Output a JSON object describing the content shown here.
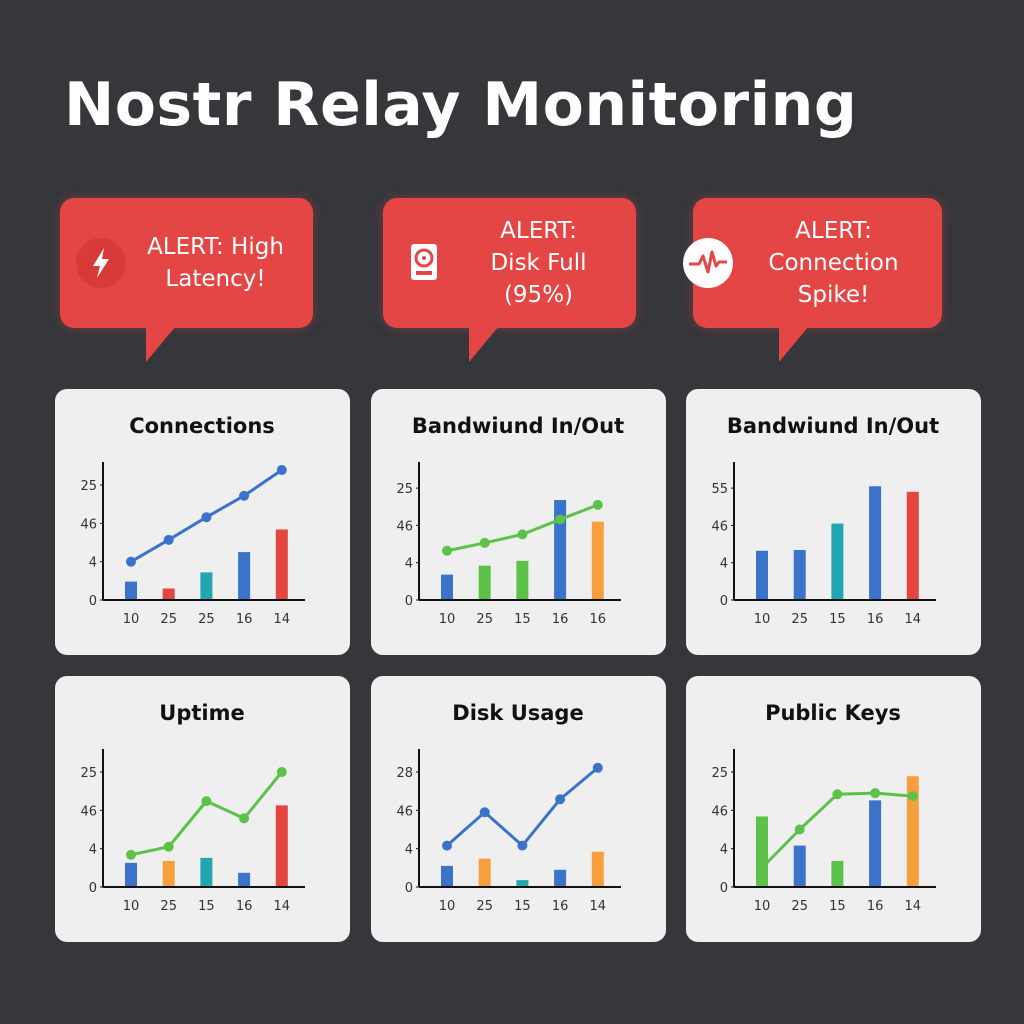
{
  "title": "Nostr Relay Monitoring",
  "alerts": [
    {
      "lines": [
        "ALERT: High",
        "Latency!"
      ]
    },
    {
      "lines": [
        "ALERT:",
        "Disk Full",
        "(95%)"
      ]
    },
    {
      "lines": [
        "ALERT:",
        "Connection",
        "Spike!"
      ]
    }
  ],
  "chart_data": [
    {
      "type": "bar",
      "title": "Connections",
      "categories": [
        "10",
        "25",
        "25",
        "16",
        "14"
      ],
      "ylim": [
        0,
        3.6
      ],
      "yticks": [
        0,
        {
          "value": 1,
          "label": "4"
        },
        {
          "value": 2,
          "label": "46"
        },
        {
          "value": 3,
          "label": "25"
        }
      ],
      "values": [
        0.48,
        0.3,
        0.72,
        1.25,
        1.84
      ],
      "colors": [
        "#3a73c9",
        "#e5453f",
        "#22a6b2",
        "#3a73c9",
        "#e5453f"
      ],
      "line": {
        "values": [
          1.0,
          1.57,
          2.16,
          2.72,
          3.39
        ],
        "color": "#3a73c9"
      }
    },
    {
      "type": "bar",
      "title": "Bandwiund In/Out",
      "categories": [
        "10",
        "25",
        "15",
        "16",
        "16"
      ],
      "ylim": [
        0,
        3.7
      ],
      "yticks": [
        0,
        {
          "value": 1,
          "label": "4"
        },
        {
          "value": 2,
          "label": "46"
        },
        {
          "value": 3,
          "label": "25"
        }
      ],
      "values": [
        0.68,
        0.92,
        1.05,
        2.68,
        2.1
      ],
      "colors": [
        "#3a73c9",
        "#5cc24a",
        "#5cc24a",
        "#3a73c9",
        "#f5a03c"
      ],
      "line": {
        "values": [
          1.32,
          1.53,
          1.76,
          2.16,
          2.55
        ],
        "color": "#5cc24a"
      }
    },
    {
      "type": "bar",
      "title": "Bandwiund In/Out",
      "categories": [
        "10",
        "25",
        "15",
        "16",
        "14"
      ],
      "ylim": [
        0,
        3.7
      ],
      "yticks": [
        0,
        {
          "value": 1,
          "label": "4"
        },
        {
          "value": 2,
          "label": "46"
        },
        {
          "value": 3,
          "label": "55"
        }
      ],
      "values": [
        1.32,
        1.34,
        2.05,
        3.05,
        2.9
      ],
      "colors": [
        "#3a73c9",
        "#3a73c9",
        "#22a6b2",
        "#3a73c9",
        "#e5453f"
      ]
    },
    {
      "type": "bar",
      "title": "Uptime",
      "categories": [
        "10",
        "25",
        "15",
        "16",
        "14"
      ],
      "ylim": [
        0,
        3.6
      ],
      "yticks": [
        0,
        {
          "value": 1,
          "label": "4"
        },
        {
          "value": 2,
          "label": "46"
        },
        {
          "value": 3,
          "label": "25"
        }
      ],
      "values": [
        0.63,
        0.68,
        0.76,
        0.37,
        2.13
      ],
      "colors": [
        "#3a73c9",
        "#f5a03c",
        "#22a6b2",
        "#3a73c9",
        "#e5453f"
      ],
      "line": {
        "values": [
          0.84,
          1.05,
          2.24,
          1.79,
          3.0
        ],
        "color": "#5cc24a"
      }
    },
    {
      "type": "bar",
      "title": "Disk Usage",
      "categories": [
        "10",
        "25",
        "15",
        "16",
        "14"
      ],
      "ylim": [
        0,
        3.6
      ],
      "yticks": [
        0,
        {
          "value": 1,
          "label": "4"
        },
        {
          "value": 2,
          "label": "46"
        },
        {
          "value": 3,
          "label": "28"
        }
      ],
      "values": [
        0.55,
        0.74,
        0.18,
        0.45,
        0.92
      ],
      "colors": [
        "#3a73c9",
        "#f5a03c",
        "#22a6b2",
        "#3a73c9",
        "#f5a03c"
      ],
      "line": {
        "values": [
          1.08,
          1.95,
          1.08,
          2.29,
          3.11
        ],
        "color": "#3a73c9"
      }
    },
    {
      "type": "bar",
      "title": "Public Keys",
      "categories": [
        "10",
        "25",
        "15",
        "16",
        "14"
      ],
      "ylim": [
        0,
        3.6
      ],
      "yticks": [
        0,
        {
          "value": 1,
          "label": "4"
        },
        {
          "value": 2,
          "label": "46"
        },
        {
          "value": 3,
          "label": "25"
        }
      ],
      "values": [
        1.84,
        1.08,
        0.68,
        2.26,
        2.89
      ],
      "colors": [
        "#5cc24a",
        "#3a73c9",
        "#5cc24a",
        "#3a73c9",
        "#f5a03c"
      ],
      "line": {
        "values": [
          0.5,
          1.5,
          2.42,
          2.45,
          2.37
        ],
        "color": "#5cc24a"
      }
    }
  ]
}
